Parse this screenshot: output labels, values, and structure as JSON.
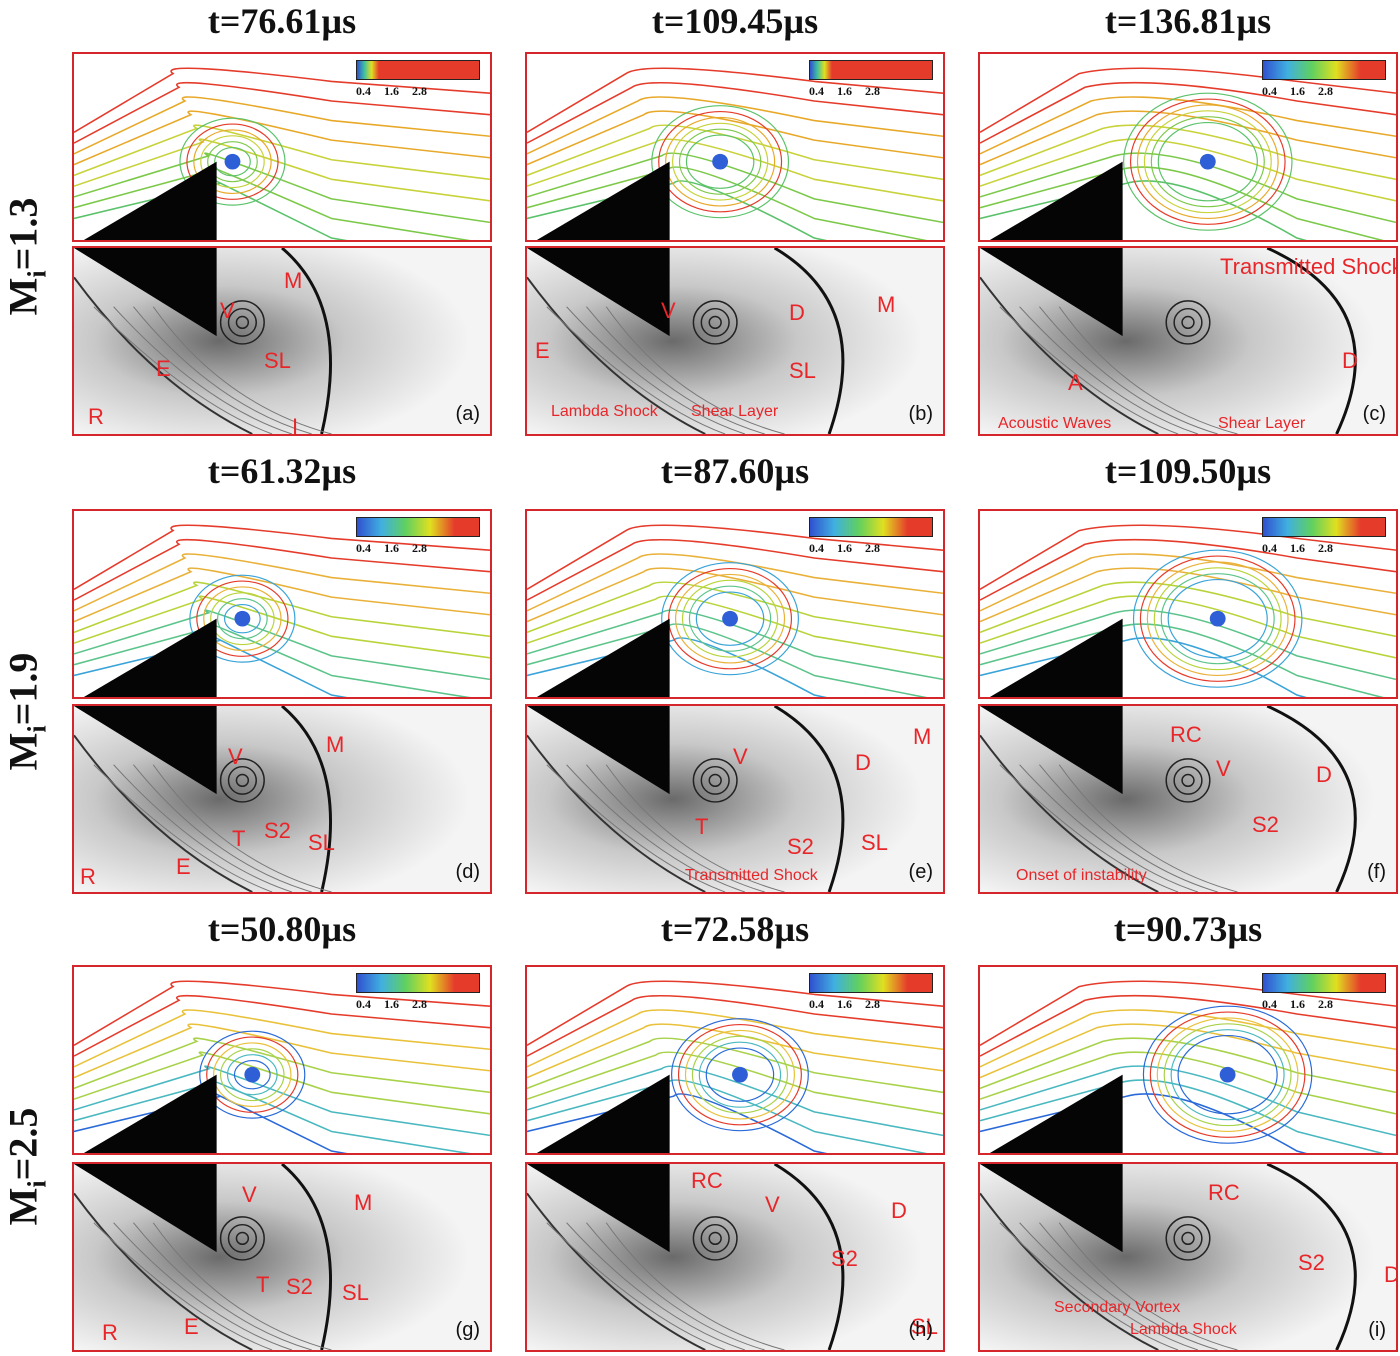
{
  "rows": [
    {
      "mach_prefix": "M",
      "mach_sub": "i",
      "mach_value": "=1.3",
      "columns": [
        {
          "time": "t=76.61µs",
          "tag": "(a)",
          "labels": [
            "M",
            "V",
            "E",
            "SL",
            "R",
            "I"
          ]
        },
        {
          "time": "t=109.45µs",
          "tag": "(b)",
          "labels": [
            "V",
            "D",
            "M",
            "E",
            "SL",
            "Lambda Shock",
            "Shear Layer"
          ]
        },
        {
          "time": "t=136.81µs",
          "tag": "(c)",
          "labels": [
            "Transmitted Shock",
            "D",
            "A",
            "Acoustic Waves",
            "Shear Layer"
          ]
        }
      ]
    },
    {
      "mach_prefix": "M",
      "mach_sub": "i",
      "mach_value": "=1.9",
      "columns": [
        {
          "time": "t=61.32µs",
          "tag": "(d)",
          "labels": [
            "V",
            "M",
            "T",
            "S2",
            "SL",
            "E",
            "R"
          ]
        },
        {
          "time": "t=87.60µs",
          "tag": "(e)",
          "labels": [
            "V",
            "M",
            "D",
            "T",
            "S2",
            "SL",
            "Transmitted Shock"
          ]
        },
        {
          "time": "t=109.50µs",
          "tag": "(f)",
          "labels": [
            "RC",
            "V",
            "D",
            "S2",
            "Onset of instability"
          ]
        }
      ]
    },
    {
      "mach_prefix": "M",
      "mach_sub": "i",
      "mach_value": "=2.5",
      "columns": [
        {
          "time": "t=50.80µs",
          "tag": "(g)",
          "labels": [
            "V",
            "M",
            "T",
            "S2",
            "SL",
            "R",
            "E"
          ]
        },
        {
          "time": "t=72.58µs",
          "tag": "(h)",
          "labels": [
            "RC",
            "V",
            "D",
            "S2",
            "SL"
          ]
        },
        {
          "time": "t=90.73µs",
          "tag": "(i)",
          "labels": [
            "RC",
            "S2",
            "D",
            "Secondary Vortex",
            "Lambda Shock"
          ]
        }
      ]
    }
  ],
  "colorbar": {
    "ticks": [
      "0.4",
      "1.6",
      "2.8"
    ]
  },
  "colors": {
    "frame": "#d4262b",
    "label": "#e8262a",
    "wedge": "#050505"
  }
}
